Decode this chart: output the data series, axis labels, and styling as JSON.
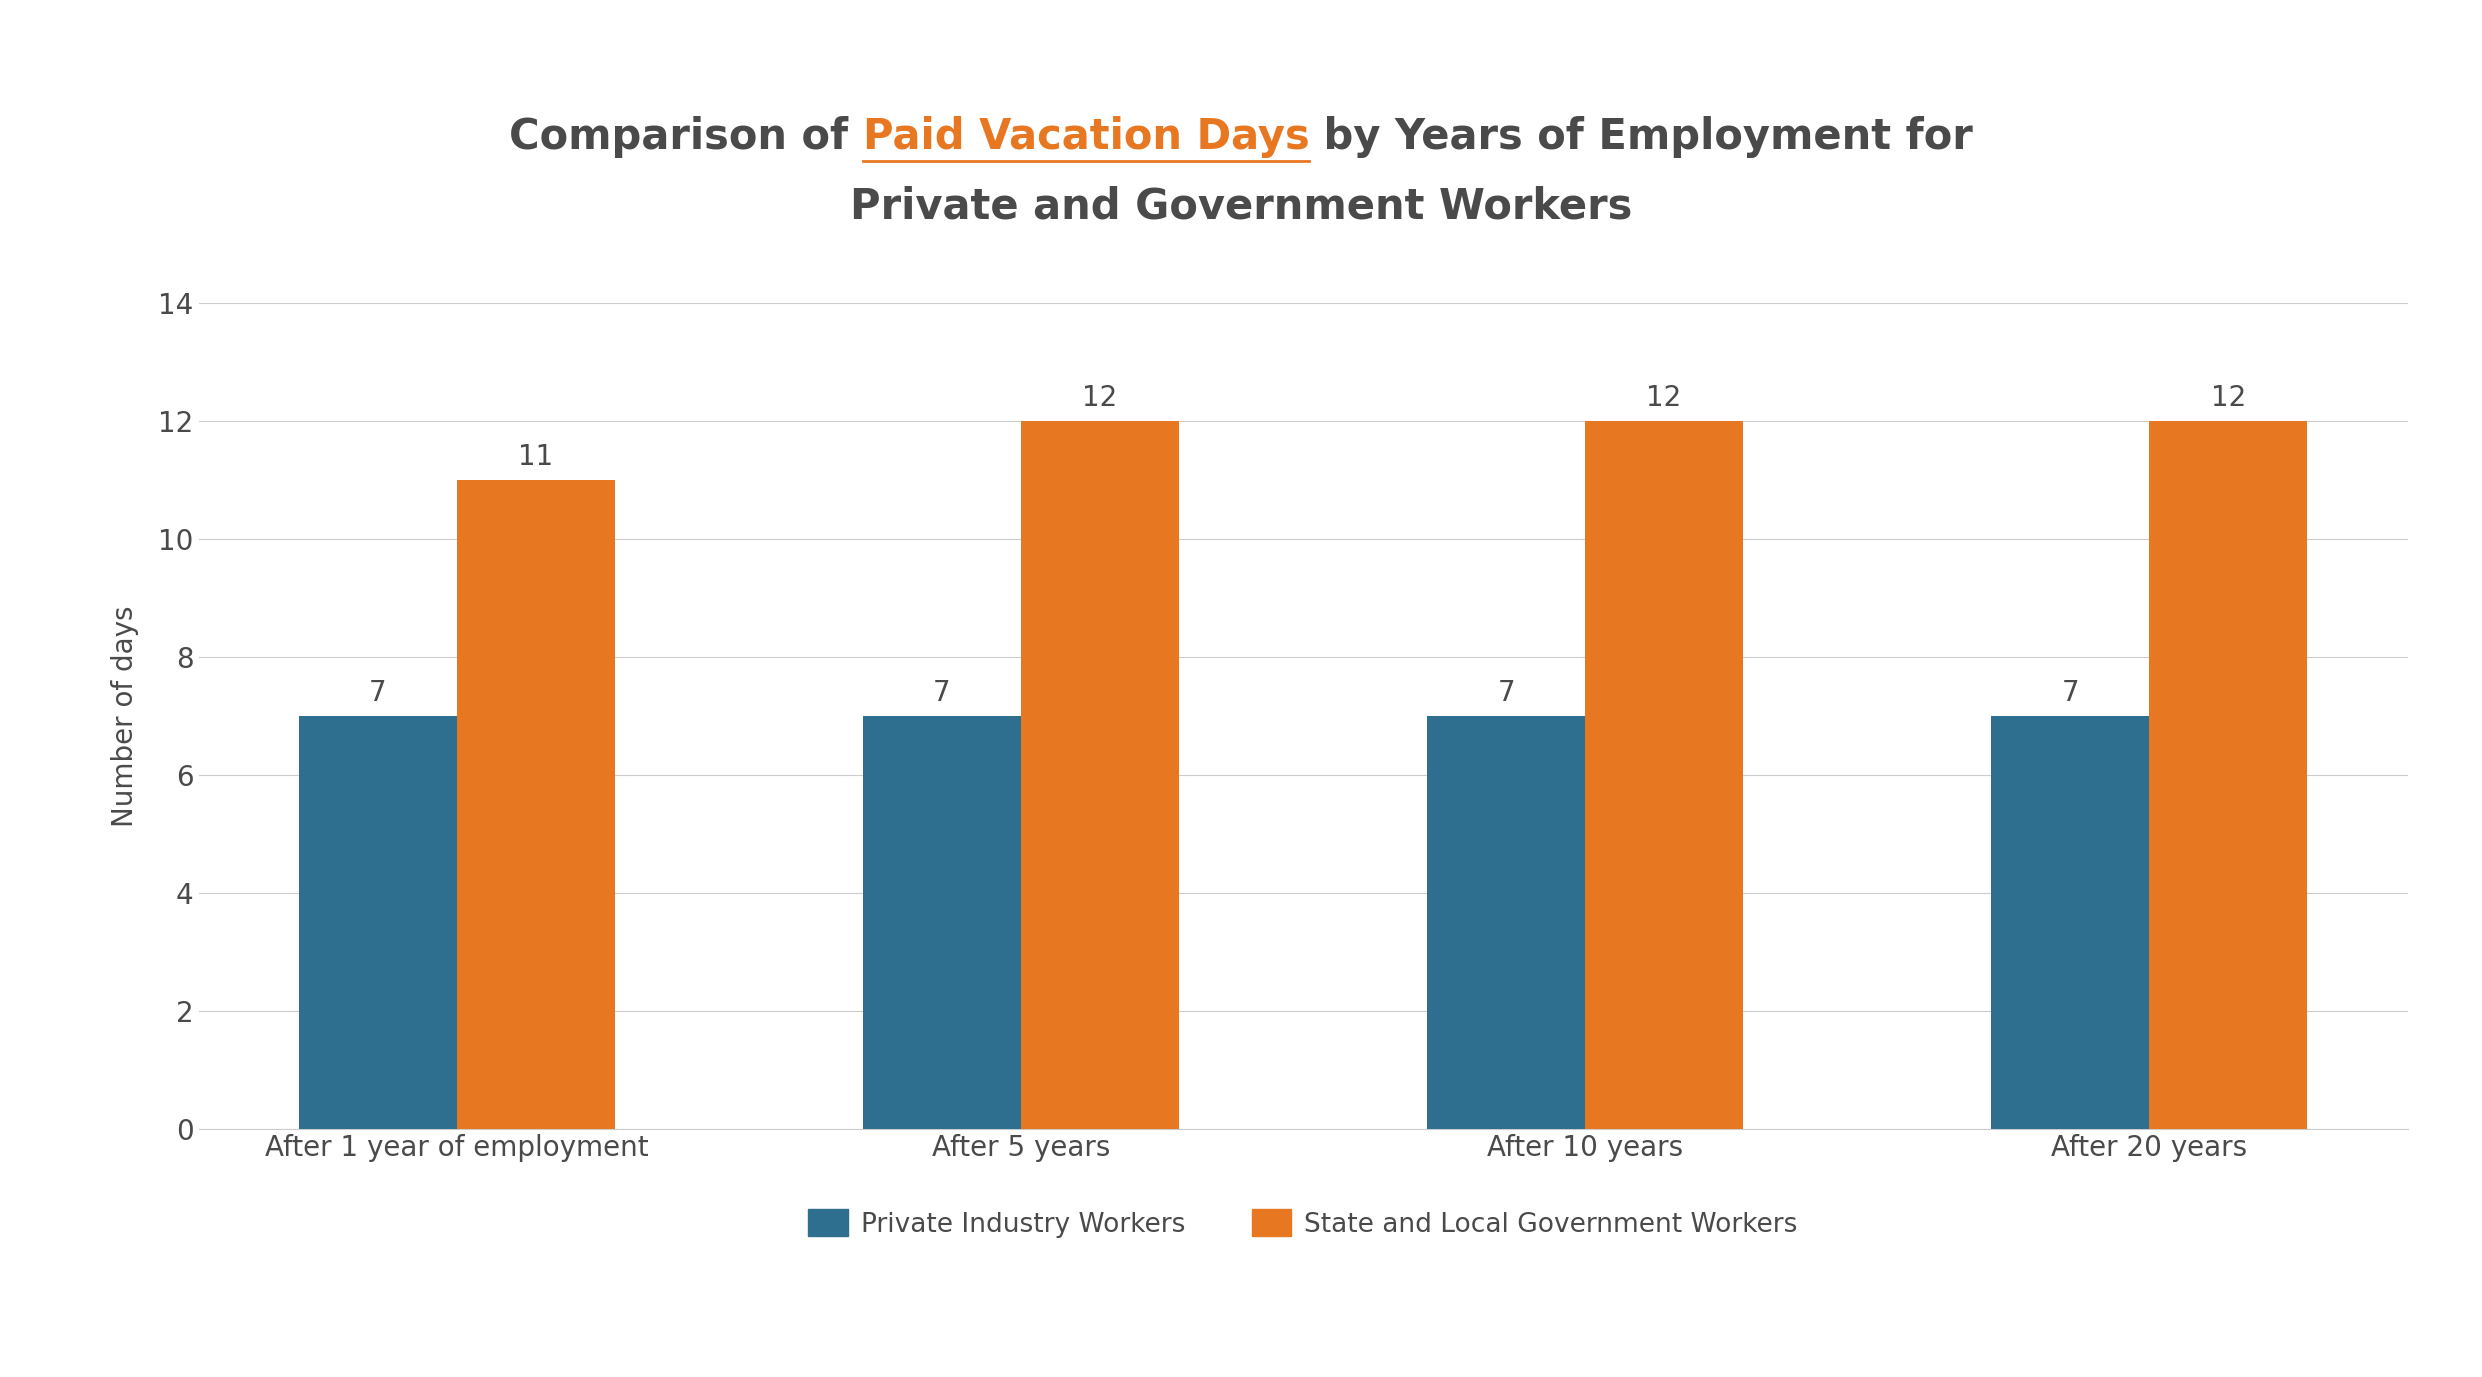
{
  "title_part1": "Comparison of ",
  "title_part2": "Paid Vacation Days",
  "title_part3": " by Years of Employment for",
  "title_line2": "Private and Government Workers",
  "title_color": "#4a4a4a",
  "title_highlight_color": "#e87722",
  "categories": [
    "After 1 year of employment",
    "After 5 years",
    "After 10 years",
    "After 20 years"
  ],
  "private_values": [
    7,
    7,
    7,
    7
  ],
  "government_values": [
    11,
    12,
    12,
    12
  ],
  "private_color": "#2e6e8e",
  "government_color": "#e87722",
  "ylabel": "Number of days",
  "ylim": [
    0,
    14
  ],
  "yticks": [
    0,
    2,
    4,
    6,
    8,
    10,
    12,
    14
  ],
  "legend_private": "Private Industry Workers",
  "legend_government": "State and Local Government Workers",
  "bar_width": 0.28,
  "background_color": "#ffffff",
  "title_fontsize": 30,
  "axis_label_fontsize": 20,
  "tick_fontsize": 20,
  "annotation_fontsize": 20,
  "legend_fontsize": 19,
  "grid_color": "#cccccc",
  "spine_color": "#cccccc"
}
